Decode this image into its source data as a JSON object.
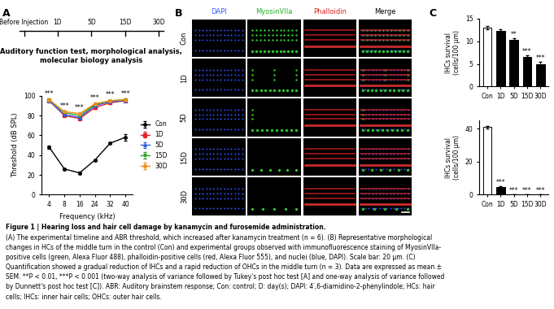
{
  "panel_labels": [
    "A",
    "B",
    "C"
  ],
  "timeline": {
    "labels": [
      "Before Injection",
      "1D",
      "5D",
      "15D",
      "30D"
    ],
    "note": "Auditory function test, morphological analysis,\nmolecular biology analysis"
  },
  "chart_data": [
    {
      "type": "line",
      "x_label": "Frequency (kHz)",
      "y_label": "Threshold (dB SPL)",
      "categories": [
        "4",
        "8",
        "16",
        "24",
        "32",
        "40"
      ],
      "ylim": [
        0,
        100
      ],
      "yticks": [
        0,
        20,
        40,
        60,
        80,
        100
      ],
      "legend": "center left",
      "annotations": [
        "***",
        "***",
        "***",
        "***",
        "***",
        "***"
      ],
      "series": [
        {
          "name": "Con",
          "color": "#000000",
          "marker": "o",
          "values": [
            48,
            26,
            22,
            35,
            52,
            58
          ],
          "errors": [
            2,
            1,
            1,
            1,
            1,
            3
          ]
        },
        {
          "name": "1D",
          "color": "#e8212b",
          "marker": "s",
          "values": [
            95,
            80,
            77,
            88,
            93,
            95
          ],
          "errors": [
            1,
            1,
            1,
            1,
            1,
            1
          ]
        },
        {
          "name": "5D",
          "color": "#2f5ce0",
          "marker": "^",
          "values": [
            95,
            81,
            78,
            90,
            94,
            95
          ],
          "errors": [
            1,
            1,
            1,
            1,
            1,
            1
          ]
        },
        {
          "name": "15D",
          "color": "#2aa02a",
          "marker": "v",
          "values": [
            96,
            83,
            80,
            91,
            95,
            96
          ],
          "errors": [
            1,
            1,
            1,
            1,
            1,
            1
          ]
        },
        {
          "name": "30D",
          "color": "#f28e1c",
          "marker": "o",
          "values": [
            96,
            84,
            82,
            92,
            95,
            96
          ],
          "errors": [
            1,
            1,
            1,
            1,
            1,
            1
          ]
        }
      ]
    },
    {
      "type": "bar",
      "y_label": "IHCs survival\n(cells/100 µm)",
      "categories": [
        "Con",
        "1D",
        "5D",
        "15D",
        "30D"
      ],
      "values": [
        13,
        12.2,
        10.3,
        6.6,
        5.0
      ],
      "errors": [
        0.4,
        0.4,
        0.4,
        0.3,
        0.4
      ],
      "colors": [
        "#ffffff",
        "#000000",
        "#000000",
        "#000000",
        "#000000"
      ],
      "ylim": [
        0,
        15
      ],
      "yticks": [
        0,
        5,
        10,
        15
      ],
      "annotations": [
        null,
        null,
        "**",
        "***",
        "***"
      ]
    },
    {
      "type": "bar",
      "y_label": "IHCs survival\n(cells/100 µm)",
      "categories": [
        "Con",
        "1D",
        "5D",
        "15D",
        "30D"
      ],
      "values": [
        41,
        4.5,
        0.3,
        0.3,
        0.3
      ],
      "errors": [
        0.8,
        0.8,
        0.1,
        0.1,
        0.1
      ],
      "colors": [
        "#ffffff",
        "#000000",
        "#000000",
        "#000000",
        "#000000"
      ],
      "ylim": [
        0,
        45
      ],
      "yticks": [
        0,
        20,
        40
      ],
      "annotations": [
        null,
        "***",
        "***",
        "***",
        "***"
      ]
    }
  ],
  "image_panel": {
    "columns": [
      "DAPI",
      "MyosinVIIa",
      "Phalloidin",
      "Merge"
    ],
    "column_colors": [
      "#3b5bff",
      "#22b022",
      "#e02020",
      "#000000"
    ],
    "rows": [
      "Con",
      "1D",
      "5D",
      "15D",
      "30D"
    ]
  },
  "caption": [
    "Figure 1 | Hearing loss and hair cell damage by kanamycin and furosemide administration.",
    "(A) The experimental timeline and ABR threshold, which increased after kanamycin treatment (n = 6). (B) Representative morphological",
    "changes in HCs of the middle turn in the control (Con) and experimental groups observed with immunofluorescence staining of MyosinVIIa-",
    "positive cells (green, Alexa Fluor 488), phalloidin-positive cells (red, Alexa Fluor 555), and nuclei (blue, DAPI). Scale bar: 20 µm. (C)",
    "Quantification showed a gradual reduction of IHCs and a rapid reduction of OHCs in the middle turn (n = 3). Data are expressed as mean ±",
    "SEM. **P < 0.01, ***P < 0.001 (two-way analysis of variance followed by Tukey's post hoc test [A] and one-way analysis of variance followed",
    "by Dunnett's post hoc test [C]). ABR: Auditory brainstem response; Con: control; D: day(s); DAPI: 4′,6-diamidino-2-phenylindole; HCs: hair",
    "cells; IHCs: inner hair cells; OHCs: outer hair cells."
  ]
}
